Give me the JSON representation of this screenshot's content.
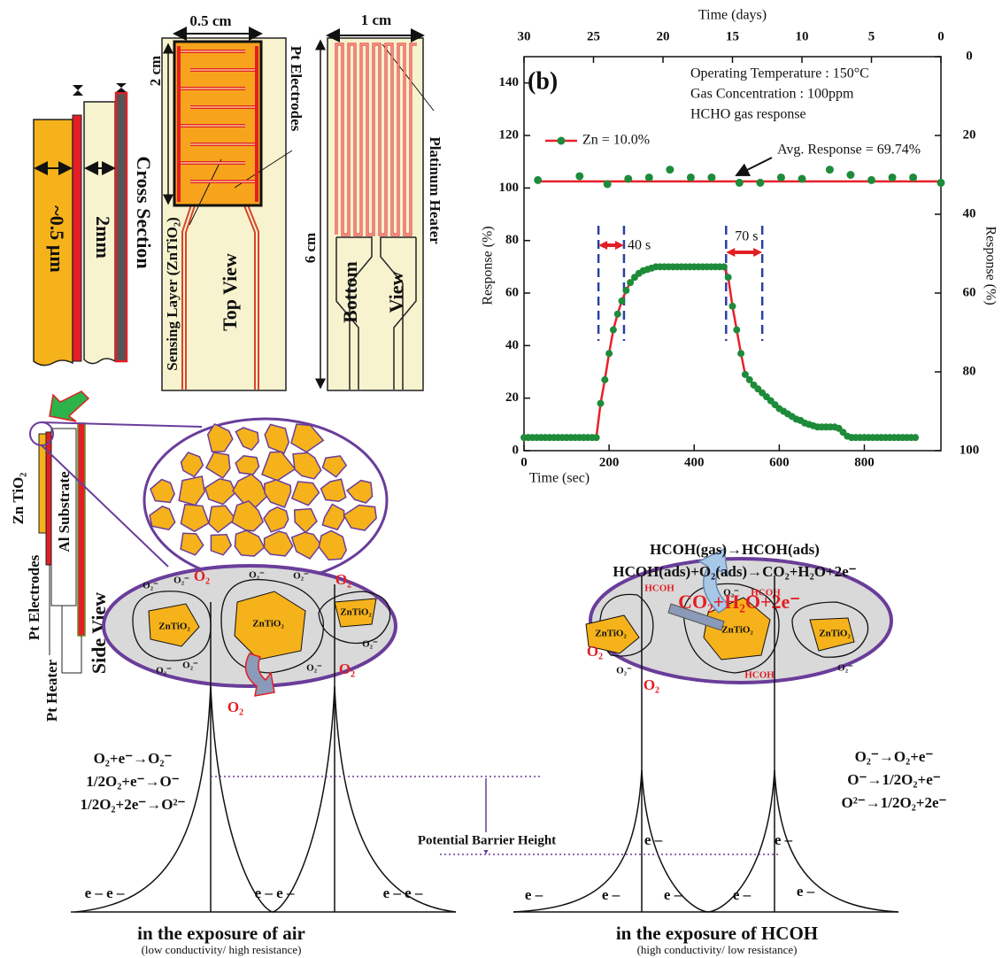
{
  "chart_data": {
    "type": "line",
    "panel_label": "(b)",
    "xlabel": "Time (sec)",
    "ylabel": "Response (%)",
    "x2label": "Time (days)",
    "y2label": "Response (%)",
    "xlim": [
      0,
      980
    ],
    "xticks": [
      0,
      200,
      400,
      600,
      800
    ],
    "ylim": [
      0,
      150
    ],
    "yticks": [
      0,
      20,
      40,
      60,
      80,
      100,
      120,
      140
    ],
    "x2lim": [
      30,
      0
    ],
    "x2ticks": [
      30,
      25,
      20,
      15,
      10,
      5,
      0
    ],
    "y2lim": [
      100,
      0
    ],
    "y2ticks": [
      0,
      20,
      40,
      60,
      80,
      100
    ],
    "annotations": [
      "Operating Temperature : 150°C",
      "Gas Concentration : 100ppm",
      "HCHO gas response"
    ],
    "avg_label": "Avg. Response = 69.74%",
    "avg_line": 102.5,
    "vlines": [
      175,
      235,
      475,
      560
    ],
    "response_label": "40 s",
    "recovery_label": "70 s",
    "series": [
      {
        "name": "Zn = 10.0%",
        "color": "#1e8b3a",
        "line_color": "#e8202a",
        "x": [
          0,
          10,
          20,
          30,
          40,
          50,
          60,
          70,
          80,
          90,
          100,
          110,
          120,
          130,
          140,
          150,
          160,
          170,
          180,
          190,
          200,
          210,
          220,
          230,
          240,
          250,
          260,
          270,
          280,
          290,
          300,
          310,
          320,
          330,
          340,
          350,
          360,
          370,
          380,
          390,
          400,
          410,
          420,
          430,
          440,
          450,
          460,
          470,
          480,
          490,
          500,
          510,
          520,
          530,
          540,
          550,
          560,
          570,
          580,
          590,
          600,
          610,
          620,
          630,
          640,
          650,
          660,
          670,
          680,
          690,
          700,
          710,
          720,
          730,
          740,
          750,
          760,
          770,
          780,
          790,
          800,
          810,
          820,
          830,
          840,
          850,
          860,
          870,
          880,
          890,
          900,
          910,
          920
        ],
        "values": [
          5,
          5,
          5,
          5,
          5,
          5,
          5,
          5,
          5,
          5,
          5,
          5,
          5,
          5,
          5,
          5,
          5,
          5,
          18,
          27,
          37,
          46,
          52,
          57,
          61,
          64,
          66,
          67.5,
          68.5,
          69,
          69.5,
          70,
          70,
          70,
          70,
          70,
          70,
          70,
          70,
          70,
          70,
          70,
          70,
          70,
          70,
          70,
          70,
          70,
          66,
          55,
          46,
          37,
          29,
          27,
          25,
          23.5,
          22,
          20.5,
          19,
          17.5,
          16,
          15,
          14,
          13,
          12,
          11.5,
          10.5,
          10,
          9.5,
          9,
          9,
          9,
          9,
          9,
          8.5,
          7,
          5.5,
          5,
          5,
          5,
          5,
          5,
          5,
          5,
          5,
          5,
          5,
          5,
          5,
          5,
          5,
          5,
          5
        ]
      },
      {
        "axis": "x2",
        "color": "#1e8b3a",
        "x": [
          29,
          26,
          24,
          22.5,
          21,
          19.5,
          18,
          16.5,
          14.5,
          13,
          11.5,
          10,
          8,
          6.5,
          5,
          3.5,
          2,
          0
        ],
        "values": [
          103,
          104.5,
          101.5,
          103.5,
          104,
          107,
          104,
          104,
          102,
          102,
          104,
          103.5,
          107,
          105,
          103,
          104,
          104,
          102
        ]
      }
    ]
  },
  "device": {
    "cross_section": {
      "film": "~0.5 µm",
      "substrate": "2mm",
      "title": "Cross Section"
    },
    "top_view": {
      "width": "0.5 cm",
      "length": "2 cm",
      "electrodes": "Pt Electrodes",
      "sensing_layer": "Sensing Layer (ZnTiO₂)",
      "title": "Top View"
    },
    "bottom_view": {
      "width": "1 cm",
      "length": "6 cm",
      "heater": "Platinum Heater",
      "title_1": "Bottom",
      "title_2": "View"
    },
    "side_view": {
      "film": "Zn TiO₂",
      "electrodes": "Pt Electrodes",
      "substrate": "Al Substrate",
      "heater": "Pt Heater",
      "title": "Side View"
    }
  },
  "mechanism": {
    "reactions": [
      "HCOH(gas)→HCOH(ads)",
      "HCOH(ads)+O₂(ads)→CO₂+H₂O+2e⁻"
    ],
    "products": "CO₂+H₂O+2e⁻",
    "barrier": "Potential Barrier Height",
    "air": {
      "grains": [
        "ZnTiO₂",
        "ZnTiO₂",
        "ZnTiO₂"
      ],
      "oxygen": [
        "O₂",
        "O₂",
        "O₂",
        "O₂"
      ],
      "ions": [
        "O₂⁻",
        "O₂⁻",
        "O₂⁻",
        "O₂⁻",
        "O₂⁻",
        "O₂⁻",
        "O₂⁻",
        "O₂⁻"
      ],
      "equations": [
        "O₂+e⁻→O₂⁻",
        "1/2O₂+e⁻→O⁻",
        "1/2O₂+2e⁻→O²⁻"
      ],
      "electrons": [
        "e – e –",
        "e – e –",
        "e – e –"
      ],
      "caption": "in the exposure of air",
      "note": "(low conductivity/ high resistance)"
    },
    "hcoh": {
      "grains": [
        "ZnTiO₂",
        "ZnTiO₂",
        "ZnTiO₂"
      ],
      "oxygen": [
        "O₂",
        "O₂"
      ],
      "molecules": [
        "HCOH",
        "HCOH",
        "HCOH"
      ],
      "ions": [
        "O₂⁻",
        "O₂⁻",
        "O₂⁻"
      ],
      "equations": [
        "O₂⁻→O₂+e⁻",
        "O⁻→1/2O₂+e⁻",
        "O²⁻→1/2O₂+2e⁻"
      ],
      "electrons": [
        "e –",
        "e –",
        "e –",
        "e –",
        "e –",
        "e –",
        "e –"
      ],
      "caption": "in the exposure of HCOH",
      "note": "(high conductivity/ low resistance)"
    }
  }
}
